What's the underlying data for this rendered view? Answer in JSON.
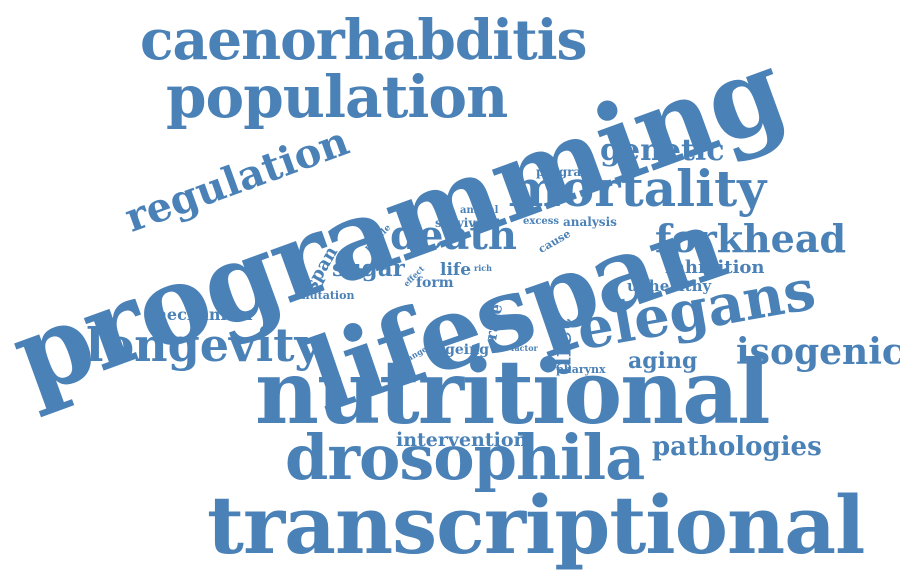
{
  "style": {
    "word_color": "#4a81b7",
    "background": "#ffffff"
  },
  "words": [
    {
      "id": "programming",
      "text": "programming"
    },
    {
      "id": "lifespan",
      "text": "lifespan"
    },
    {
      "id": "nutritional",
      "text": "nutritional"
    },
    {
      "id": "transcriptional",
      "text": "transcriptional"
    },
    {
      "id": "caenorhabditis",
      "text": "caenorhabditis"
    },
    {
      "id": "population",
      "text": "population"
    },
    {
      "id": "mortality",
      "text": "mortality"
    },
    {
      "id": "drosophila",
      "text": "drosophila"
    },
    {
      "id": "elegans",
      "text": "elegans"
    },
    {
      "id": "longevity",
      "text": "longevity"
    },
    {
      "id": "regulation",
      "text": "regulation"
    },
    {
      "id": "death",
      "text": "death"
    },
    {
      "id": "forkhead",
      "text": "forkhead"
    },
    {
      "id": "genetic",
      "text": "genetic"
    },
    {
      "id": "isogenic",
      "text": "isogenic"
    },
    {
      "id": "pathologies",
      "text": "pathologies"
    },
    {
      "id": "diet",
      "text": "diet"
    },
    {
      "id": "aging",
      "text": "aging"
    },
    {
      "id": "inhibition",
      "text": "inhibition"
    },
    {
      "id": "intervention",
      "text": "intervention"
    },
    {
      "id": "sugar",
      "text": "sugar"
    },
    {
      "id": "span",
      "text": "span"
    },
    {
      "id": "unhealthy",
      "text": "unhealthy"
    },
    {
      "id": "mechanism",
      "text": "mechanism"
    },
    {
      "id": "life",
      "text": "life"
    },
    {
      "id": "rate",
      "text": "rate"
    },
    {
      "id": "ageing",
      "text": "ageing"
    },
    {
      "id": "form",
      "text": "form"
    },
    {
      "id": "mutation",
      "text": "mutation"
    },
    {
      "id": "pharynx",
      "text": "pharynx"
    },
    {
      "id": "program",
      "text": "program"
    },
    {
      "id": "animal",
      "text": "animal"
    },
    {
      "id": "survival",
      "text": "survival"
    },
    {
      "id": "excess",
      "text": "excess"
    },
    {
      "id": "analysis",
      "text": "analysis"
    },
    {
      "id": "cause",
      "text": "cause"
    },
    {
      "id": "profile",
      "text": "profile"
    },
    {
      "id": "effect",
      "text": "effect"
    },
    {
      "id": "rich",
      "text": "rich"
    },
    {
      "id": "change",
      "text": "change"
    },
    {
      "id": "factor",
      "text": "factor"
    }
  ]
}
